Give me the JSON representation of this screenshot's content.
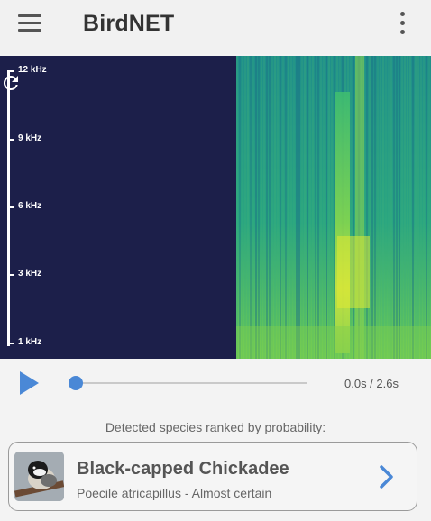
{
  "app": {
    "title": "BirdNET"
  },
  "spectrogram": {
    "freq_labels": [
      "12 kHz",
      "9 kHz",
      "6 kHz",
      "3 kHz",
      "1 kHz"
    ],
    "background_color": "#1c1f4a",
    "icons": {
      "refresh": "refresh-icon"
    }
  },
  "player": {
    "time_readout": "0.0s / 2.6s",
    "progress": 0,
    "accent_color": "#4a88d6"
  },
  "results": {
    "header": "Detected species ranked by probability:",
    "items": [
      {
        "common_name": "Black-capped Chickadee",
        "detail": "Poecile atricapillus - Almost certain"
      }
    ]
  }
}
